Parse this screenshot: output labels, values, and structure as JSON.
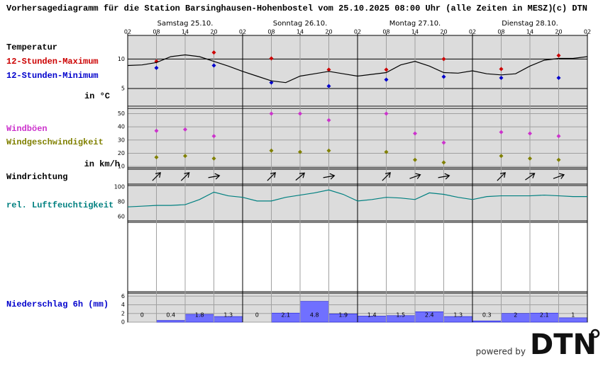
{
  "header": {
    "title": "Vorhersagediagramm für die Station Barsinghausen-Hohenbostel vom 25.10.2025 08:00 Uhr (alle Zeiten in MESZ)",
    "copyright": "(c) DTN"
  },
  "x_axis": {
    "days": [
      "Samstag 25.10.",
      "Sonntag 26.10.",
      "Montag 27.10.",
      "Dienstag 28.10."
    ],
    "hour_labels": [
      "02",
      "08",
      "14",
      "20",
      "02",
      "08",
      "14",
      "20",
      "02",
      "08",
      "14",
      "20",
      "02",
      "08",
      "14",
      "20",
      "02"
    ]
  },
  "chart_data": [
    {
      "type": "line",
      "title": "Temperatur",
      "unit_label": "in °C",
      "ylim": [
        2,
        14
      ],
      "yticks": [
        5,
        10
      ],
      "grid": true,
      "grid_color": "#000000",
      "series": [
        {
          "name": "12-Stunden-Maximum",
          "type": "scatter",
          "color": "#cc0000",
          "values": [
            null,
            9.6,
            null,
            11.1,
            null,
            10.1,
            null,
            8.2,
            null,
            8.2,
            null,
            10.0,
            null,
            8.3,
            null,
            10.6,
            null
          ]
        },
        {
          "name": "12-Stunden-Minimum",
          "type": "scatter",
          "color": "#0000cc",
          "values": [
            null,
            8.5,
            null,
            8.9,
            null,
            6.0,
            null,
            5.4,
            null,
            6.5,
            null,
            7.0,
            null,
            6.8,
            null,
            6.8,
            null
          ]
        },
        {
          "type": "line",
          "color": "#000000",
          "values": [
            8.9,
            9.0,
            9.4,
            10.4,
            10.7,
            10.4,
            9.6,
            8.8,
            7.9,
            7.1,
            6.3,
            6.0,
            7.1,
            7.5,
            7.9,
            7.5,
            7.1,
            7.4,
            7.7,
            9.0,
            9.6,
            8.8,
            7.7,
            7.6,
            8.0,
            7.5,
            7.3,
            7.5,
            8.8,
            9.8,
            10.1,
            10.1,
            10.4
          ]
        }
      ]
    },
    {
      "type": "scatter",
      "unit_label": "in km/h",
      "ylim": [
        9,
        54
      ],
      "yticks": [
        10,
        20,
        30,
        40,
        50
      ],
      "grid": true,
      "grid_color": "#a0a0a0",
      "series": [
        {
          "name": "Windböen",
          "color": "#cc33cc",
          "values": [
            null,
            37,
            38,
            33,
            null,
            50,
            50,
            45,
            null,
            50,
            35,
            28,
            null,
            36,
            35,
            33,
            null
          ]
        },
        {
          "name": "Windgeschwindigkeit",
          "color": "#808000",
          "values": [
            null,
            17,
            18,
            16,
            null,
            22,
            21,
            22,
            null,
            21,
            15,
            13,
            null,
            18,
            16,
            15,
            null
          ]
        }
      ]
    },
    {
      "type": "arrow",
      "title": "Windrichtung",
      "color": "#000000",
      "values": [
        null,
        225,
        225,
        260,
        null,
        225,
        230,
        260,
        null,
        225,
        250,
        260,
        null,
        225,
        235,
        250,
        null
      ]
    },
    {
      "type": "line",
      "ylim": [
        54,
        102
      ],
      "yticks": [
        60,
        80,
        100
      ],
      "grid": false,
      "series": [
        {
          "name": "rel. Luftfeuchtigkeit",
          "color": "#008080",
          "values": [
            73,
            74,
            75,
            75,
            76,
            83,
            93,
            88,
            86,
            81,
            81,
            86,
            89,
            92,
            96,
            90,
            81,
            83,
            86,
            85,
            83,
            92,
            90,
            86,
            83,
            87,
            88,
            88,
            88,
            89,
            88,
            87,
            87
          ]
        }
      ]
    },
    {
      "type": "blank"
    },
    {
      "type": "bar",
      "title": "Niederschlag 6h (mm)",
      "title_color": "#0000cc",
      "color": "#7070ff",
      "ylim": [
        0,
        6.7
      ],
      "yticks": [
        0,
        2,
        4,
        6
      ],
      "grid": true,
      "grid_color": "#a0a0a0",
      "values": [
        0,
        0.4,
        1.8,
        1.3,
        0,
        2.1,
        4.8,
        1.9,
        1.4,
        1.5,
        2.4,
        1.3,
        0.3,
        2,
        2.1,
        1
      ]
    }
  ],
  "footer": {
    "powered_by": "powered by",
    "logo": "DTN"
  }
}
